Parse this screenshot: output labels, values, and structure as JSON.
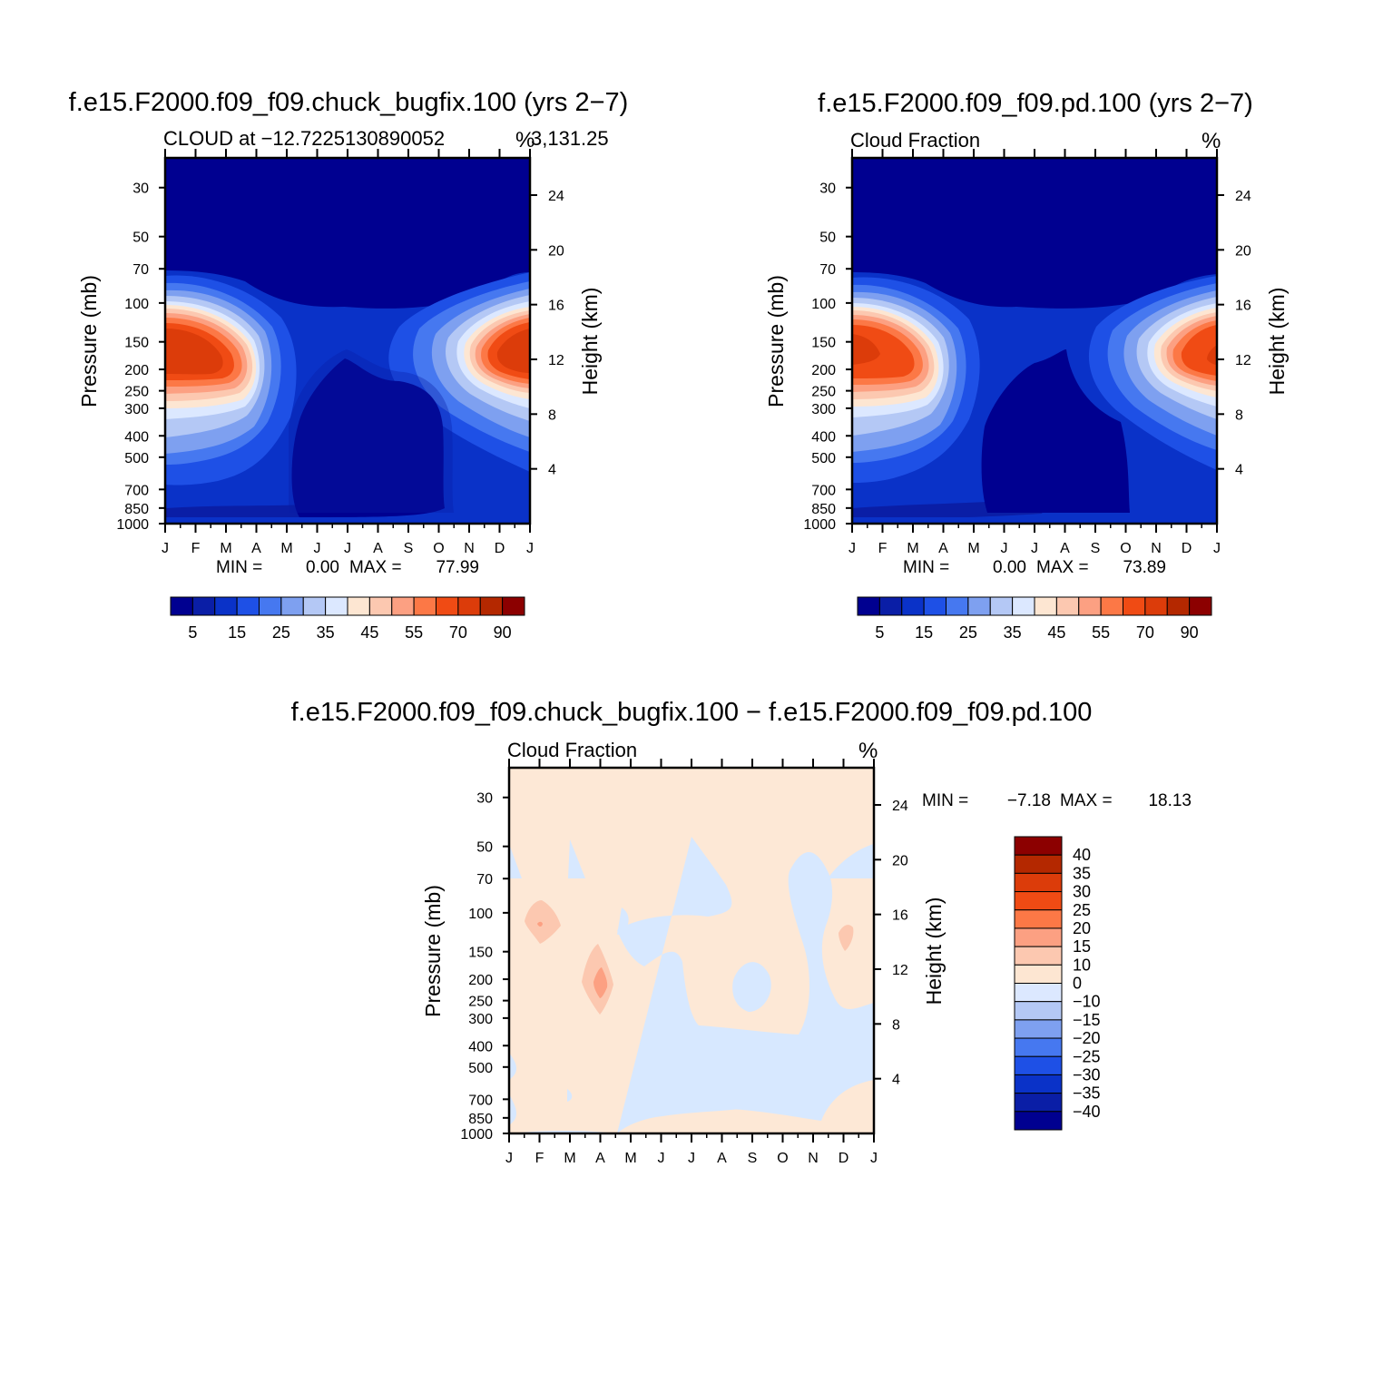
{
  "colors": {
    "abs_levels": [
      "#000090",
      "#0a1ea6",
      "#0a32c8",
      "#1e50e6",
      "#4678f0",
      "#7ea0f0",
      "#b4c8f5",
      "#dce8ff",
      "#fde6d2",
      "#fcc8b0",
      "#fca082",
      "#fc7846",
      "#f04b14",
      "#dc3c0a",
      "#b42800",
      "#8c0000"
    ],
    "diff_levels": [
      "#000090",
      "#0a1ea6",
      "#0a32c8",
      "#1e50e6",
      "#4678f0",
      "#7ea0f0",
      "#b4c8f5",
      "#dce8ff",
      "#fde6d2",
      "#fcc8b0",
      "#fca082",
      "#fc7846",
      "#f04b14",
      "#dc3c0a",
      "#b42800",
      "#8c0000"
    ],
    "bg_diff": "#fde8d6",
    "neg_diff": "#d7e8ff",
    "pos_diff": "#fcc8b0"
  },
  "panels": [
    {
      "title": "f.e15.F2000.f09_f09.chuck_bugfix.100 (yrs 2−7)",
      "subtitle_left": "CLOUD at −12.7225130890052",
      "subtitle_right_pct": "%",
      "subtitle_tail": "3,131.25",
      "ylabel": "Pressure (mb)",
      "y2label": "Height (km)",
      "minmax": {
        "min_label": "MIN =",
        "min": "0.00",
        "max_label": "MAX =",
        "max": "77.99"
      }
    },
    {
      "title": "f.e15.F2000.f09_f09.pd.100 (yrs 2−7)",
      "subtitle_left": "Cloud Fraction",
      "subtitle_right_pct": "%",
      "ylabel": "Pressure (mb)",
      "y2label": "Height (km)",
      "minmax": {
        "min_label": "MIN =",
        "min": "0.00",
        "max_label": "MAX =",
        "max": "73.89"
      }
    },
    {
      "title": "f.e15.F2000.f09_f09.chuck_bugfix.100 − f.e15.F2000.f09_f09.pd.100",
      "subtitle_left": "Cloud Fraction",
      "subtitle_right_pct": "%",
      "ylabel": "Pressure (mb)",
      "y2label": "Height (km)",
      "minmax": {
        "min_label": "MIN =",
        "min": "−7.18",
        "max_label": "MAX =",
        "max": "18.13"
      }
    }
  ],
  "axes": {
    "x_months": [
      "J",
      "F",
      "M",
      "A",
      "M",
      "J",
      "J",
      "A",
      "S",
      "O",
      "N",
      "D",
      "J"
    ],
    "pressure_ticks": [
      "30",
      "50",
      "70",
      "100",
      "150",
      "200",
      "250",
      "300",
      "400",
      "500",
      "700",
      "850",
      "1000"
    ],
    "height_ticks": [
      "24",
      "20",
      "16",
      "12",
      "8",
      "4"
    ]
  },
  "colorbar_abs": {
    "labels": [
      "5",
      "15",
      "25",
      "35",
      "45",
      "55",
      "70",
      "90"
    ]
  },
  "colorbar_diff": {
    "labels": [
      "40",
      "35",
      "30",
      "25",
      "20",
      "15",
      "10",
      "0",
      "−10",
      "−15",
      "−20",
      "−25",
      "−30",
      "−35",
      "−40"
    ]
  },
  "chart_data": [
    {
      "type": "heatmap",
      "title": "f.e15.F2000.f09_f09.chuck_bugfix.100 (yrs 2−7)",
      "subtitle": "CLOUD at −12.72251308900523,131.25",
      "xlabel": "",
      "ylabel": "Pressure (mb)",
      "y2label": "Height (km)",
      "x": [
        "J",
        "F",
        "M",
        "A",
        "M",
        "J",
        "J",
        "A",
        "S",
        "O",
        "N",
        "D",
        "J"
      ],
      "y": [
        30,
        50,
        70,
        100,
        150,
        200,
        250,
        300,
        400,
        500,
        700,
        850,
        1000
      ],
      "units": "%",
      "min": 0.0,
      "max": 77.99,
      "description_of_maxima": "peak about 60–78% near 150–200 mb in Jan–Mar and Nov–Jan",
      "levels": [
        5,
        10,
        15,
        20,
        25,
        30,
        35,
        40,
        45,
        50,
        55,
        60,
        70,
        80,
        90
      ]
    },
    {
      "type": "heatmap",
      "title": "f.e15.F2000.f09_f09.pd.100 (yrs 2−7)",
      "subtitle": "Cloud Fraction",
      "xlabel": "",
      "ylabel": "Pressure (mb)",
      "y2label": "Height (km)",
      "x": [
        "J",
        "F",
        "M",
        "A",
        "M",
        "J",
        "J",
        "A",
        "S",
        "O",
        "N",
        "D",
        "J"
      ],
      "y": [
        30,
        50,
        70,
        100,
        150,
        200,
        250,
        300,
        400,
        500,
        700,
        850,
        1000
      ],
      "units": "%",
      "min": 0.0,
      "max": 73.89,
      "levels": [
        5,
        10,
        15,
        20,
        25,
        30,
        35,
        40,
        45,
        50,
        55,
        60,
        70,
        80,
        90
      ]
    },
    {
      "type": "heatmap",
      "title": "f.e15.F2000.f09_f09.chuck_bugfix.100 − f.e15.F2000.f09_f09.pd.100",
      "subtitle": "Cloud Fraction",
      "xlabel": "",
      "ylabel": "Pressure (mb)",
      "y2label": "Height (km)",
      "x": [
        "J",
        "F",
        "M",
        "A",
        "M",
        "J",
        "J",
        "A",
        "S",
        "O",
        "N",
        "D",
        "J"
      ],
      "y": [
        30,
        50,
        70,
        100,
        150,
        200,
        250,
        300,
        400,
        500,
        700,
        850,
        1000
      ],
      "units": "%",
      "min": -7.18,
      "max": 18.13,
      "levels": [
        -40,
        -35,
        -30,
        -25,
        -20,
        -15,
        -10,
        0,
        10,
        15,
        20,
        25,
        30,
        35,
        40
      ]
    }
  ]
}
